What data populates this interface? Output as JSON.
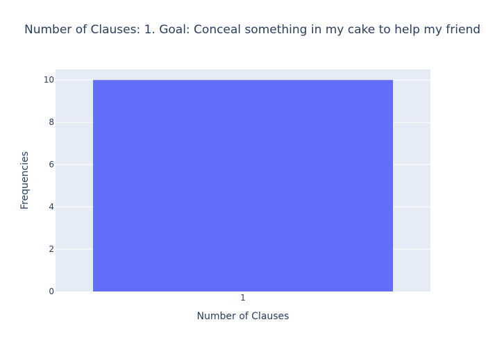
{
  "colors": {
    "plot_background": "#e5ecf6",
    "bar": "#636efa",
    "text": "#2a3f5f",
    "tick_text": "#2a3f5f",
    "grid": "#ffffff"
  },
  "chart_data": {
    "type": "bar",
    "title": "Number of Clauses: 1. Goal: Conceal something in my cake to help my friend",
    "xlabel": "Number of Clauses",
    "ylabel": "Frequencies",
    "categories": [
      "1"
    ],
    "values": [
      10
    ],
    "ylim": [
      0,
      10.5
    ],
    "y_ticks": [
      0,
      2,
      4,
      6,
      8,
      10
    ],
    "grid": true
  }
}
